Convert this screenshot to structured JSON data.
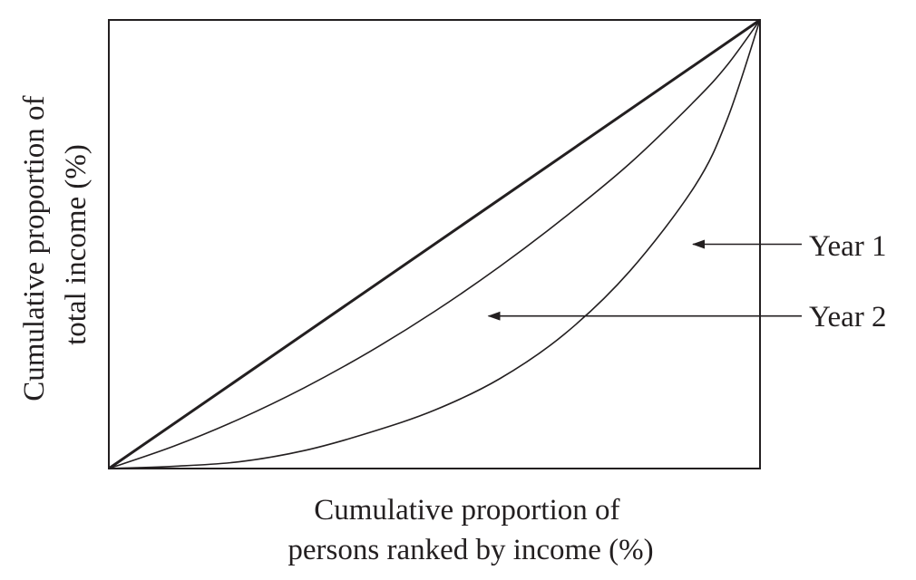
{
  "chart_data": {
    "type": "line",
    "title": "",
    "xlabel_lines": [
      "Cumulative proportion of",
      "persons ranked by income (%)"
    ],
    "ylabel_lines": [
      "Cumulative proportion of",
      "total income (%)"
    ],
    "xlim": [
      0,
      100
    ],
    "ylim": [
      0,
      100
    ],
    "grid": false,
    "legend": "annotations with arrows, right of plot",
    "line_color": "#231f20",
    "series": [
      {
        "role": "line of equality",
        "x": [
          0,
          100
        ],
        "y": [
          0,
          100
        ]
      },
      {
        "role": "curve pointed to by Year 2 label",
        "x": [
          0,
          10,
          20,
          30,
          40,
          50,
          60,
          70,
          80,
          90,
          95,
          100
        ],
        "y": [
          0,
          5,
          11,
          18,
          26,
          35,
          45,
          56,
          68,
          82,
          90,
          100
        ]
      },
      {
        "role": "curve pointed to by Year 1 label",
        "x": [
          0,
          10,
          20,
          30,
          40,
          50,
          60,
          70,
          80,
          90,
          95,
          100
        ],
        "y": [
          0,
          0.5,
          1.5,
          4,
          8,
          13,
          20,
          30,
          44,
          63,
          78,
          100
        ]
      }
    ],
    "annotations": [
      {
        "text": "Year 1",
        "points_to_series": 2,
        "target": [
          89.7,
          50
        ]
      },
      {
        "text": "Year 2",
        "points_to_series": 1,
        "target": [
          58.3,
          34
        ]
      }
    ]
  }
}
